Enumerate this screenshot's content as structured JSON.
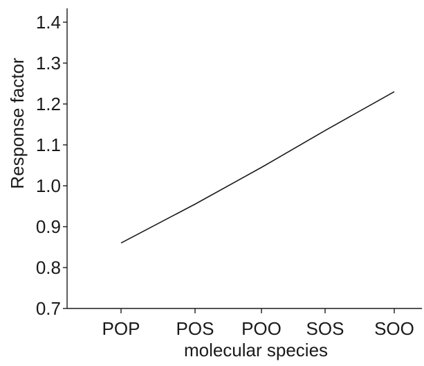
{
  "chart_data": {
    "type": "line",
    "title": "",
    "xlabel": "molecular species",
    "ylabel": "Response factor",
    "categories": [
      "POP",
      "POS",
      "POO",
      "SOS",
      "SOO"
    ],
    "series": [
      {
        "values": [
          0.86,
          0.955,
          1.045,
          1.135,
          1.23
        ]
      }
    ],
    "ylim": [
      0.7,
      1.4
    ],
    "yticks": [
      "0.7",
      "0.8",
      "0.9",
      "1.0",
      "1.1",
      "1.2",
      "1.3",
      "1.4"
    ],
    "grid": false,
    "legend": "none",
    "line_color": "#1a1a1a",
    "axis_color": "#1a1a1a"
  }
}
